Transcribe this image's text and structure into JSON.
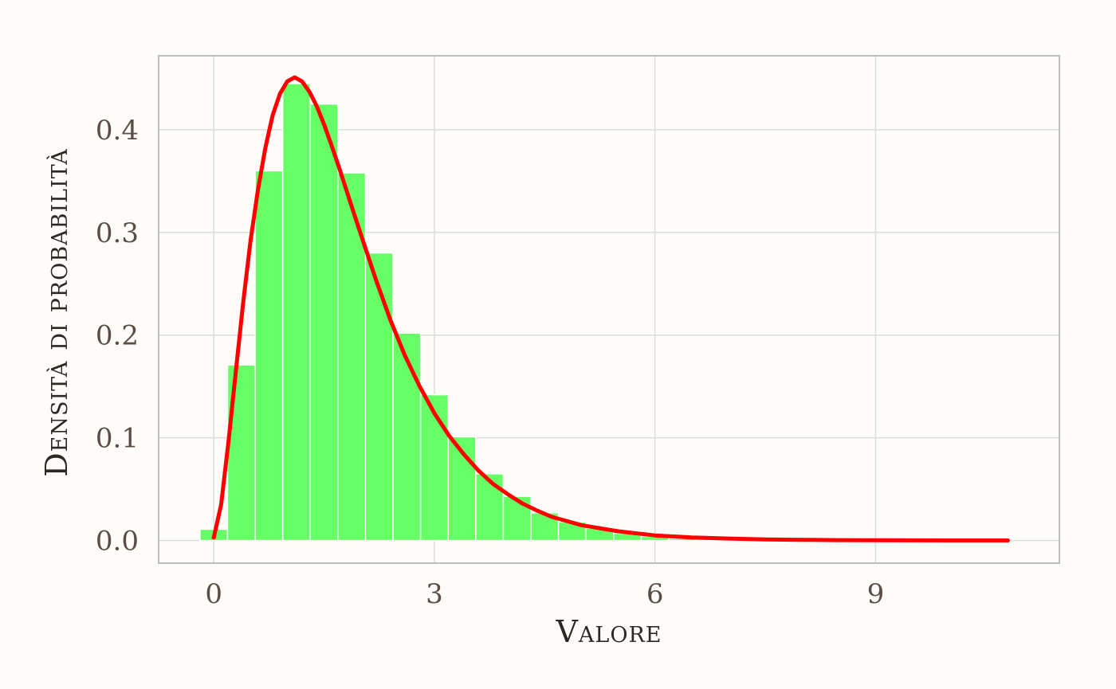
{
  "colors": {
    "background": "#fdfcf9",
    "bar_fill": "#66ff66",
    "curve": "#ff0000"
  },
  "chart_data": {
    "type": "bar",
    "xlabel": "Valore",
    "ylabel": "Densità di probabilità",
    "xlim": [
      -0.75,
      11.5
    ],
    "ylim": [
      -0.022,
      0.472
    ],
    "x_ticks": [
      0,
      3,
      6,
      9
    ],
    "x_tick_labels": [
      "0",
      "3",
      "6",
      "9"
    ],
    "y_ticks": [
      0.0,
      0.1,
      0.2,
      0.3,
      0.4
    ],
    "y_tick_labels": [
      "0.0",
      "0.1",
      "0.2",
      "0.3",
      "0.4"
    ],
    "grid": true,
    "histogram": {
      "bin_width": 0.375,
      "bin_centers": [
        0.0,
        0.375,
        0.75,
        1.125,
        1.5,
        1.875,
        2.25,
        2.625,
        3.0,
        3.375,
        3.75,
        4.125,
        4.5,
        4.875,
        5.25,
        5.625,
        6.0,
        6.375,
        6.75,
        7.125,
        7.5,
        7.875,
        8.25
      ],
      "density": [
        0.011,
        0.171,
        0.36,
        0.445,
        0.425,
        0.358,
        0.28,
        0.202,
        0.142,
        0.101,
        0.065,
        0.043,
        0.027,
        0.018,
        0.012,
        0.007,
        0.004,
        0.002,
        0.0015,
        0.001,
        0.0006,
        0.0004,
        0.0003
      ]
    },
    "density_curve": {
      "x": [
        0.0,
        0.1,
        0.2,
        0.3,
        0.4,
        0.5,
        0.6,
        0.7,
        0.8,
        0.9,
        1.0,
        1.1,
        1.2,
        1.3,
        1.4,
        1.5,
        1.6,
        1.7,
        1.8,
        1.9,
        2.0,
        2.2,
        2.4,
        2.6,
        2.8,
        3.0,
        3.2,
        3.4,
        3.6,
        3.8,
        4.0,
        4.2,
        4.4,
        4.6,
        4.8,
        5.0,
        5.5,
        6.0,
        6.5,
        7.0,
        7.5,
        8.0,
        8.5,
        9.0,
        9.5,
        10.0,
        10.5,
        10.8
      ],
      "y": [
        0.003,
        0.035,
        0.096,
        0.165,
        0.232,
        0.292,
        0.341,
        0.382,
        0.414,
        0.435,
        0.447,
        0.451,
        0.447,
        0.437,
        0.423,
        0.405,
        0.385,
        0.364,
        0.342,
        0.32,
        0.298,
        0.255,
        0.215,
        0.18,
        0.15,
        0.124,
        0.102,
        0.084,
        0.068,
        0.055,
        0.045,
        0.036,
        0.029,
        0.023,
        0.019,
        0.015,
        0.009,
        0.005,
        0.003,
        0.002,
        0.001,
        0.0007,
        0.0004,
        0.0003,
        0.0002,
        0.0001,
        0.0001,
        0.0001
      ]
    }
  }
}
